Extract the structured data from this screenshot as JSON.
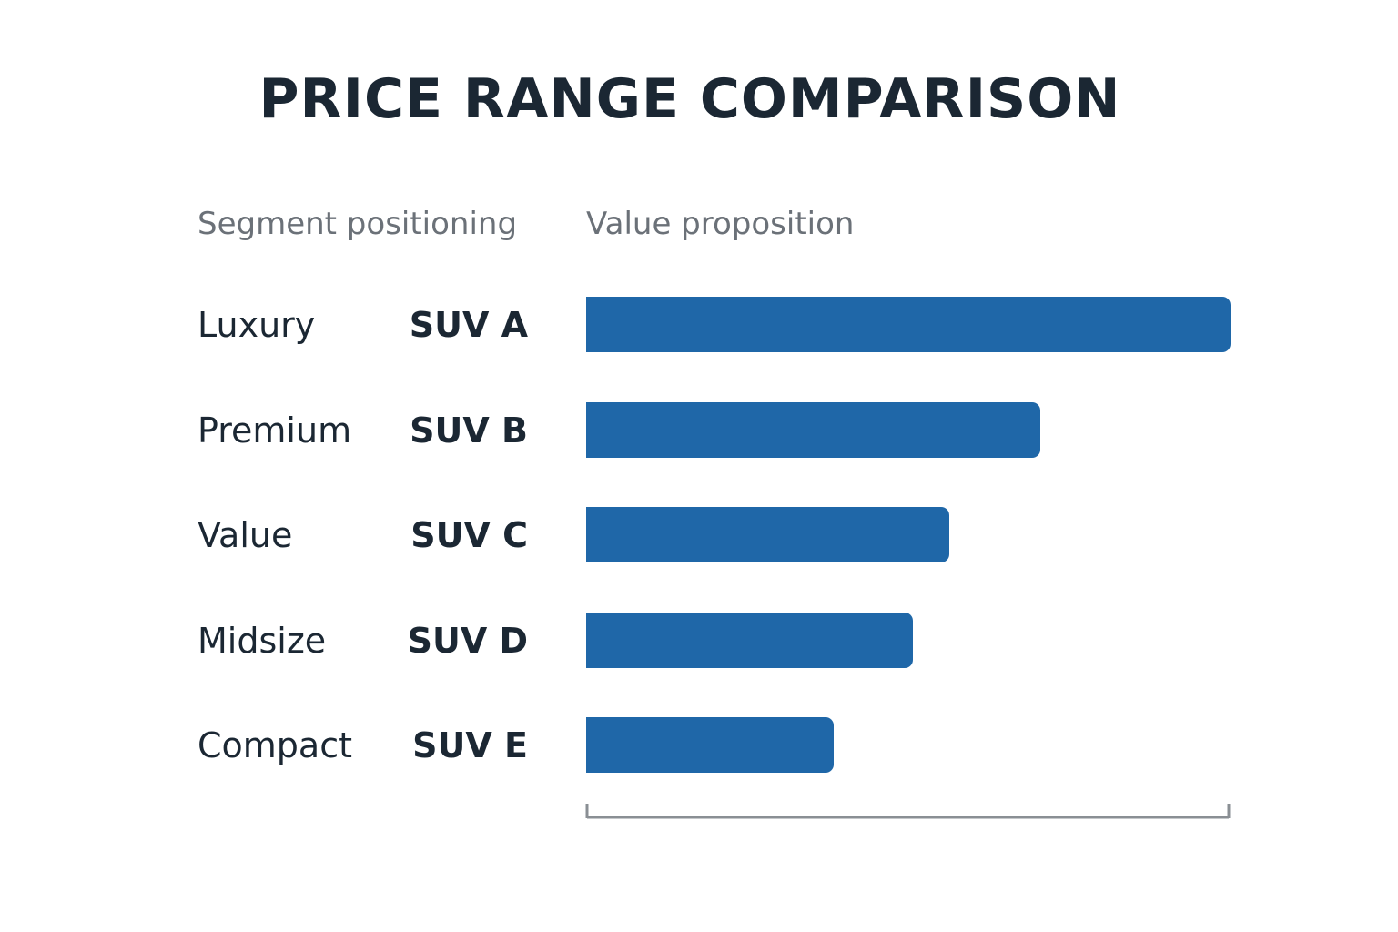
{
  "chart_data": {
    "type": "bar",
    "orientation": "horizontal",
    "title": "PRICE RANGE COMPARISON",
    "segment_header": "Segment positioning",
    "value_header": "Value proposition",
    "categories": [
      "SUV A",
      "SUV B",
      "SUV C",
      "SUV D",
      "SUV E"
    ],
    "segments": [
      "Luxury",
      "Premium",
      "Value",
      "Midsize",
      "Compact"
    ],
    "values": [
      100,
      70.5,
      56.3,
      50.7,
      38.4
    ],
    "xlim": [
      0,
      100
    ],
    "grid": false,
    "bar_color": "#1f67a8",
    "axis_color": "#8a8f94"
  }
}
